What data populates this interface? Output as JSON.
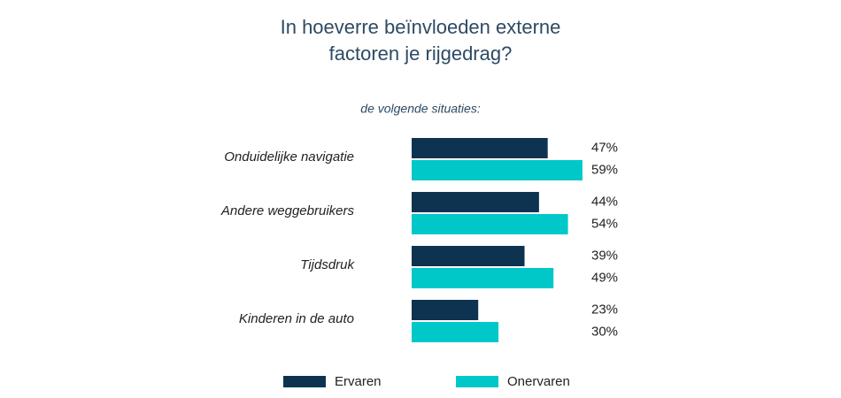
{
  "chart_data": {
    "type": "bar",
    "orientation": "horizontal",
    "title": "In hoeverre beïnvloeden externe factoren je rijgedrag?",
    "subtitle": "de volgende situaties:",
    "categories": [
      "Onduidelijke navigatie",
      "Andere weggebruikers",
      "Tijdsdruk",
      "Kinderen in de auto"
    ],
    "series": [
      {
        "name": "Ervaren",
        "color": "#0d3350",
        "values": [
          47,
          44,
          39,
          23
        ],
        "value_labels": [
          "47%",
          "44%",
          "39%",
          "23%"
        ]
      },
      {
        "name": "Onervaren",
        "color": "#00c8c8",
        "values": [
          59,
          54,
          49,
          30
        ],
        "value_labels": [
          "59%",
          "54%",
          "49%",
          "30%"
        ]
      }
    ]
  }
}
